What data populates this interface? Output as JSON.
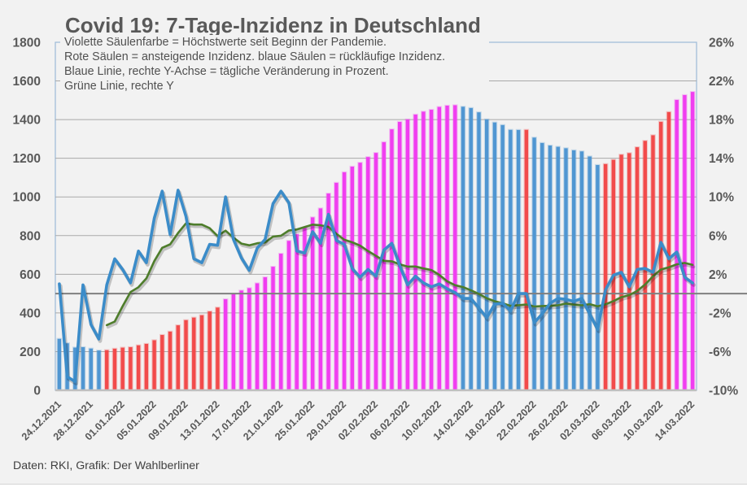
{
  "chart_data": {
    "type": "bar",
    "title": "Covid 19: 7-Tage-Inzidenz in Deutschland",
    "notes": [
      "Violette Säulenfarbe = Höchstwerte seit Beginn der Pandemie.",
      "Rote Säulen = ansteigende Inzidenz. blaue Säulen = rückläufige Inzidenz.",
      "Blaue Linie, rechte Y-Achse = tägliche Veränderung in Prozent.",
      "Grüne Linie, rechte Y"
    ],
    "source": "Daten: RKI, Grafik: Der Wahlberliner",
    "xlabel": "",
    "ylabel": "",
    "ylabel_right": "",
    "grid": true,
    "legend": "none",
    "categories": [
      "24.12.2021",
      "25.12.2021",
      "26.12.2021",
      "27.12.2021",
      "28.12.2021",
      "29.12.2021",
      "30.12.2021",
      "31.12.2021",
      "01.01.2022",
      "02.01.2022",
      "03.01.2022",
      "04.01.2022",
      "05.01.2022",
      "06.01.2022",
      "07.01.2022",
      "08.01.2022",
      "09.01.2022",
      "10.01.2022",
      "11.01.2022",
      "12.01.2022",
      "13.01.2022",
      "14.01.2022",
      "15.01.2022",
      "16.01.2022",
      "17.01.2022",
      "18.01.2022",
      "19.01.2022",
      "20.01.2022",
      "21.01.2022",
      "22.01.2022",
      "23.01.2022",
      "24.01.2022",
      "25.01.2022",
      "26.01.2022",
      "27.01.2022",
      "28.01.2022",
      "29.01.2022",
      "30.01.2022",
      "31.01.2022",
      "01.02.2022",
      "02.02.2022",
      "03.02.2022",
      "04.02.2022",
      "05.02.2022",
      "06.02.2022",
      "07.02.2022",
      "08.02.2022",
      "09.02.2022",
      "10.02.2022",
      "11.02.2022",
      "12.02.2022",
      "13.02.2022",
      "14.02.2022",
      "15.02.2022",
      "16.02.2022",
      "17.02.2022",
      "18.02.2022",
      "19.02.2022",
      "20.02.2022",
      "21.02.2022",
      "22.02.2022",
      "23.02.2022",
      "24.02.2022",
      "25.02.2022",
      "26.02.2022",
      "27.02.2022",
      "28.02.2022",
      "01.03.2022",
      "02.03.2022",
      "03.03.2022",
      "04.03.2022",
      "05.03.2022",
      "06.03.2022",
      "07.03.2022",
      "08.03.2022",
      "09.03.2022",
      "10.03.2022",
      "11.03.2022",
      "12.03.2022",
      "13.03.2022",
      "14.03.2022"
    ],
    "x_tick_step": 4,
    "x_tick_labels": [
      "24.12.2021",
      "28.12.2021",
      "01.01.2022",
      "05.01.2022",
      "09.01.2022",
      "13.01.2022",
      "17.01.2022",
      "21.01.2022",
      "25.01.2022",
      "29.01.2022",
      "02.02.2022",
      "06.02.2022",
      "10.02.2022",
      "14.02.2022",
      "18.02.2022",
      "22.02.2022",
      "26.02.2022",
      "02.03.2022",
      "06.03.2022",
      "10.03.2022",
      "14.03.2022"
    ],
    "y_left": {
      "min": 0,
      "max": 1800,
      "step": 200,
      "tick_labels": [
        "0",
        "200",
        "400",
        "600",
        "800",
        "1000",
        "1200",
        "1400",
        "1600",
        "1800"
      ]
    },
    "y_right": {
      "min": -10,
      "max": 26,
      "step": 4,
      "unit": "%",
      "tick_labels": [
        "-10%",
        "-6%",
        "-2%",
        "2%",
        "6%",
        "10%",
        "14%",
        "18%",
        "22%",
        "26%"
      ]
    },
    "reference_line": {
      "axis": "right",
      "value": 0
    },
    "colors": {
      "falling": "#5096d2",
      "rising": "#f24b4b",
      "record": "#f03ef0",
      "blue_line": "#3b8cc9",
      "green_line": "#4e7d2b",
      "text": "#595959",
      "grid": "#a9a9a9",
      "zero_line": "#7f7f7f",
      "plot_border": "#9dbbd8",
      "background": "#f2f2f2"
    },
    "series": [
      {
        "name": "7-Tage-Inzidenz",
        "type": "bar",
        "axis": "left",
        "values": [
          265.8,
          242.9,
          220.7,
          222.7,
          215.6,
          205.5,
          207.4,
          214.9,
          220.3,
          222.7,
          232.4,
          239.9,
          258.6,
          285.9,
          303.4,
          335.9,
          362.7,
          375.7,
          387.9,
          407.5,
          427.7,
          470.6,
          497.1,
          515.7,
          528.2,
          553.2,
          584.4,
          638.8,
          706.3,
          772.7,
          806.8,
          840.3,
          894.3,
          940.6,
          1017.4,
          1073.0,
          1127.7,
          1156.8,
          1176.8,
          1206.2,
          1227.5,
          1283.2,
          1349.5,
          1388.0,
          1400.8,
          1426.0,
          1441.0,
          1450.8,
          1465.4,
          1472.2,
          1474.3,
          1466.5,
          1459.8,
          1437.5,
          1401.0,
          1385.1,
          1371.7,
          1346.8,
          1346.3,
          1346.9,
          1306.8,
          1278.9,
          1265.8,
          1259.2,
          1251.7,
          1241.1,
          1235.4,
          1209.2,
          1165.0,
          1170.0,
          1192.0,
          1218.5,
          1226.5,
          1257.0,
          1290.0,
          1319.0,
          1388.5,
          1439.0,
          1501.6,
          1526.8,
          1543.0
        ],
        "color_class": [
          "falling",
          "falling",
          "falling",
          "falling",
          "falling",
          "falling",
          "rising",
          "rising",
          "rising",
          "rising",
          "rising",
          "rising",
          "rising",
          "rising",
          "rising",
          "rising",
          "rising",
          "rising",
          "rising",
          "rising",
          "rising",
          "record",
          "record",
          "record",
          "record",
          "record",
          "record",
          "record",
          "record",
          "record",
          "record",
          "record",
          "record",
          "record",
          "record",
          "record",
          "record",
          "record",
          "record",
          "record",
          "record",
          "record",
          "record",
          "record",
          "record",
          "record",
          "record",
          "record",
          "record",
          "record",
          "record",
          "falling",
          "falling",
          "falling",
          "falling",
          "falling",
          "falling",
          "falling",
          "falling",
          "rising",
          "falling",
          "falling",
          "falling",
          "falling",
          "falling",
          "falling",
          "falling",
          "falling",
          "falling",
          "rising",
          "rising",
          "rising",
          "rising",
          "rising",
          "rising",
          "rising",
          "rising",
          "rising",
          "record",
          "record",
          "record"
        ]
      },
      {
        "name": "Blaue Linie",
        "type": "line",
        "axis": "right",
        "color_key": "blue_line",
        "values": [
          1.0,
          -8.6,
          -9.1,
          0.9,
          -3.2,
          -4.7,
          0.9,
          3.6,
          2.5,
          1.1,
          4.4,
          3.2,
          7.8,
          10.6,
          6.1,
          10.7,
          8.0,
          3.6,
          3.2,
          5.1,
          5.0,
          10.0,
          5.6,
          3.7,
          2.4,
          4.7,
          5.6,
          9.3,
          10.6,
          9.4,
          4.4,
          4.2,
          6.4,
          5.2,
          8.2,
          5.5,
          5.1,
          2.6,
          1.7,
          2.5,
          1.8,
          4.5,
          5.2,
          2.9,
          0.9,
          1.8,
          1.1,
          0.7,
          1.0,
          0.5,
          0.1,
          -0.5,
          -0.5,
          -1.5,
          -2.5,
          -1.1,
          -1.0,
          -1.8,
          0.0,
          0.0,
          -3.0,
          -2.1,
          -1.0,
          -0.5,
          -0.6,
          -0.8,
          -0.5,
          -2.1,
          -3.7,
          0.4,
          1.9,
          2.2,
          0.7,
          2.5,
          2.6,
          2.2,
          5.3,
          3.6,
          4.3,
          1.7,
          1.1
        ]
      },
      {
        "name": "Grüne Linie",
        "type": "line",
        "axis": "right",
        "color_key": "green_line",
        "values": [
          null,
          null,
          null,
          null,
          null,
          null,
          -3.26,
          -2.89,
          -1.3,
          0.16,
          0.66,
          1.57,
          3.36,
          4.74,
          5.1,
          6.27,
          7.26,
          7.14,
          7.14,
          6.76,
          5.96,
          6.51,
          5.79,
          5.17,
          5.0,
          5.21,
          5.29,
          5.9,
          5.99,
          6.53,
          6.63,
          6.89,
          7.13,
          7.07,
          6.91,
          6.19,
          5.57,
          5.31,
          4.96,
          4.4,
          3.91,
          3.39,
          3.34,
          3.03,
          2.79,
          2.8,
          2.6,
          2.44,
          1.94,
          1.27,
          0.87,
          0.67,
          0.34,
          -0.03,
          -0.49,
          -0.79,
          -1.0,
          -1.27,
          -1.2,
          -1.13,
          -1.34,
          -1.29,
          -1.27,
          -1.2,
          -1.03,
          -1.14,
          -1.21,
          -1.09,
          -1.31,
          -1.11,
          -0.77,
          -0.37,
          -0.16,
          0.27,
          0.94,
          1.79,
          2.49,
          2.73,
          3.03,
          3.17,
          2.97
        ]
      }
    ]
  }
}
